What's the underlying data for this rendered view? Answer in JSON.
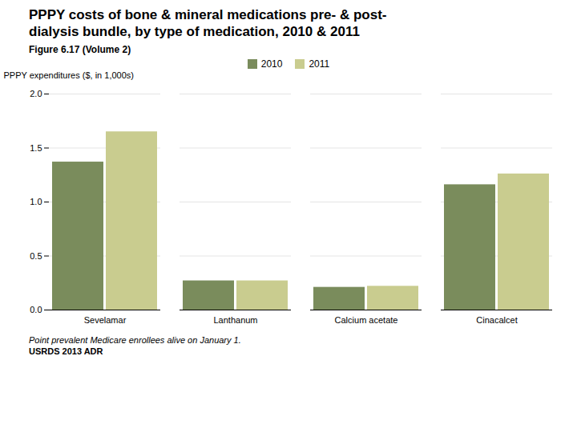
{
  "chart_data": {
    "type": "bar",
    "title": "PPPY costs of bone & mineral medications pre- & post-\ndialysis bundle, by type of medication, 2010 & 2011",
    "subtitle": "Figure 6.17 (Volume 2)",
    "annotations": [
      "Point prevalent Medicare enrollees alive on January 1.",
      "USRDS 2013 ADR"
    ],
    "categories": [
      "Sevelamar",
      "Lanthanum",
      "Calcium acetate",
      "Cinacalcet"
    ],
    "series": [
      {
        "name": "2010",
        "color": "#7a8c5c",
        "values": [
          1.37,
          0.27,
          0.21,
          1.16
        ]
      },
      {
        "name": "2011",
        "color": "#c9cc8f",
        "values": [
          1.65,
          0.27,
          0.22,
          1.26
        ]
      }
    ],
    "ylabel": "PPPY expenditures ($, in 1,000s)",
    "ylim": [
      0,
      2.0
    ],
    "yticks": [
      {
        "value": 0,
        "label": "0.0"
      },
      0.5,
      {
        "value": 1,
        "label": "1.0"
      },
      1.5,
      {
        "value": 2,
        "label": "2.0"
      }
    ],
    "grid": true,
    "legend": "upper center"
  }
}
